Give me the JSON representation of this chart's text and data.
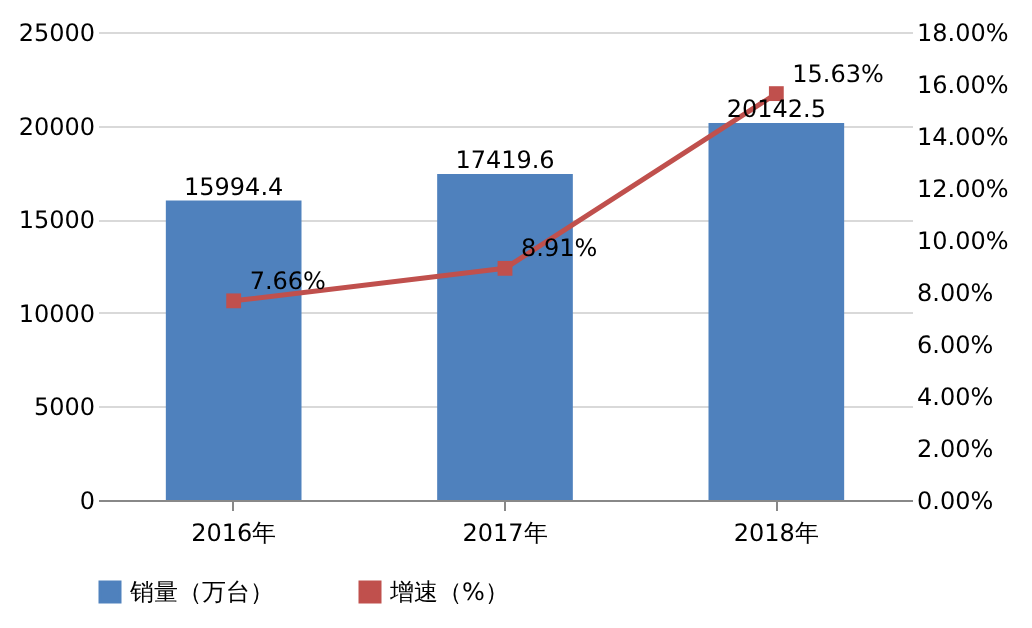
{
  "chart_data": {
    "type": "bar",
    "categories": [
      "2016年",
      "2017年",
      "2018年"
    ],
    "series": [
      {
        "name": "销量（万台）",
        "color": "#4f81bd",
        "values": [
          15994.4,
          17419.6,
          20142.5
        ],
        "value_labels": [
          "15994.4",
          "17419.6",
          "20142.5"
        ]
      },
      {
        "name": "增速（%）",
        "type": "line",
        "axis": "y2",
        "color": "#c0504d",
        "values": [
          7.66,
          8.91,
          15.63
        ],
        "value_labels": [
          "7.66%",
          "8.91%",
          "15.63%"
        ]
      }
    ],
    "ylim": [
      0,
      25000
    ],
    "yticks": [
      0,
      5000,
      10000,
      15000,
      20000,
      25000
    ],
    "y2lim": [
      0,
      18
    ],
    "y2ticks": [
      {
        "value": 0,
        "label": "0.00%"
      },
      {
        "value": 2,
        "label": "2.00%"
      },
      {
        "value": 4,
        "label": "4.00%"
      },
      {
        "value": 6,
        "label": "6.00%"
      },
      {
        "value": 8,
        "label": "8.00%"
      },
      {
        "value": 10,
        "label": "10.00%"
      },
      {
        "value": 12,
        "label": "12.00%"
      },
      {
        "value": 14,
        "label": "14.00%"
      },
      {
        "value": 16,
        "label": "16.00%"
      },
      {
        "value": 18,
        "label": "18.00%"
      }
    ],
    "grid": "y",
    "legend": "bottom",
    "marker": "square",
    "line_style": "solid"
  }
}
